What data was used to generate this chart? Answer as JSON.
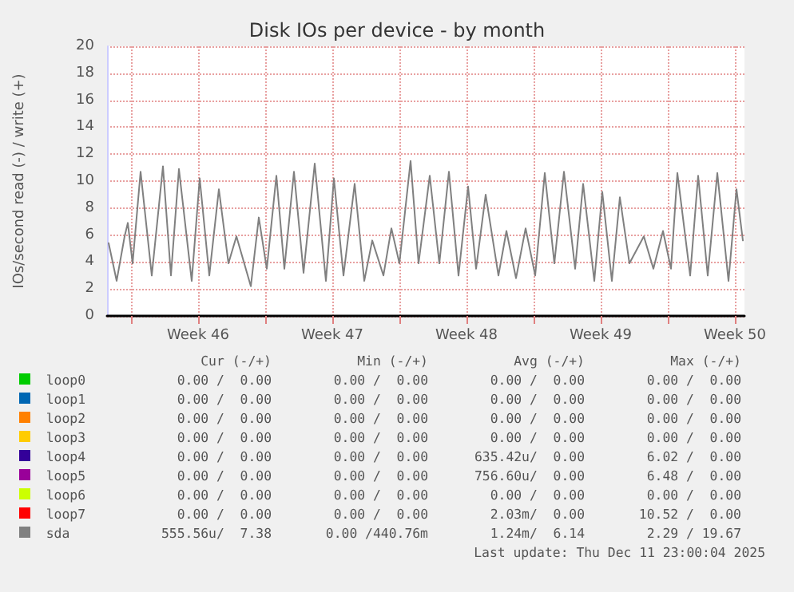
{
  "chart_data": {
    "type": "line",
    "title": "Disk IOs per device - by month",
    "ylabel": "IOs/second read (-) / write (+)",
    "xlim": [
      "2025-11-08T18:00",
      "2025-12-12T00:00"
    ],
    "xticks": [
      {
        "value": "2025-11-10T00:00",
        "label": null
      },
      {
        "value": "2025-11-13T12:00",
        "label": "Week 46"
      },
      {
        "value": "2025-11-17T00:00",
        "label": null
      },
      {
        "value": "2025-11-20T12:00",
        "label": "Week 47"
      },
      {
        "value": "2025-11-24T00:00",
        "label": null
      },
      {
        "value": "2025-11-27T12:00",
        "label": "Week 48"
      },
      {
        "value": "2025-12-01T00:00",
        "label": null
      },
      {
        "value": "2025-12-04T12:00",
        "label": "Week 49"
      },
      {
        "value": "2025-12-08T00:00",
        "label": null
      },
      {
        "value": "2025-12-11T12:00",
        "label": "Week 50"
      }
    ],
    "ylim": [
      0,
      20
    ],
    "yticks": [
      0,
      2,
      4,
      6,
      8,
      10,
      12,
      14,
      16,
      18,
      20
    ],
    "grid": true,
    "legend": "bottom",
    "marker": "none",
    "line_style": "solid",
    "series": [
      {
        "name": "loop0",
        "color": "#00cc00"
      },
      {
        "name": "loop1",
        "color": "#0066b3"
      },
      {
        "name": "loop2",
        "color": "#ff8000"
      },
      {
        "name": "loop3",
        "color": "#ffcc00"
      },
      {
        "name": "loop4",
        "color": "#330099"
      },
      {
        "name": "loop5",
        "color": "#990099"
      },
      {
        "name": "loop6",
        "color": "#ccff00"
      },
      {
        "name": "loop7",
        "color": "#ff0000"
      },
      {
        "name": "sda",
        "color": "#808080",
        "x": [
          "2025-11-08T20:00",
          "2025-11-09T06:00",
          "2025-11-09T16:00",
          "2025-11-09T20:00",
          "2025-11-10T02:00",
          "2025-11-10T12:00",
          "2025-11-11T02:00",
          "2025-11-11T16:00",
          "2025-11-12T02:00",
          "2025-11-12T12:00",
          "2025-11-13T04:00",
          "2025-11-13T14:00",
          "2025-11-14T02:00",
          "2025-11-14T14:00",
          "2025-11-15T02:00",
          "2025-11-15T12:00",
          "2025-11-16T06:00",
          "2025-11-16T16:00",
          "2025-11-17T02:00",
          "2025-11-17T14:00",
          "2025-11-18T00:00",
          "2025-11-18T12:00",
          "2025-11-19T00:00",
          "2025-11-19T14:00",
          "2025-11-20T04:00",
          "2025-11-20T14:00",
          "2025-11-21T02:00",
          "2025-11-21T16:00",
          "2025-11-22T04:00",
          "2025-11-22T14:00",
          "2025-11-23T04:00",
          "2025-11-23T14:00",
          "2025-11-24T00:00",
          "2025-11-24T14:00",
          "2025-11-25T00:00",
          "2025-11-25T14:00",
          "2025-11-26T02:00",
          "2025-11-26T14:00",
          "2025-11-27T02:00",
          "2025-11-27T14:00",
          "2025-11-28T00:00",
          "2025-11-28T12:00",
          "2025-11-29T04:00",
          "2025-11-29T14:00",
          "2025-11-30T02:00",
          "2025-11-30T14:00",
          "2025-12-01T02:00",
          "2025-12-01T14:00",
          "2025-12-02T02:00",
          "2025-12-02T14:00",
          "2025-12-03T04:00",
          "2025-12-03T14:00",
          "2025-12-04T04:00",
          "2025-12-04T14:00",
          "2025-12-05T02:00",
          "2025-12-05T12:00",
          "2025-12-06T00:00",
          "2025-12-06T18:00",
          "2025-12-07T06:00",
          "2025-12-07T18:00",
          "2025-12-08T04:00",
          "2025-12-08T12:00",
          "2025-12-09T04:00",
          "2025-12-09T14:00",
          "2025-12-10T02:00",
          "2025-12-10T14:00",
          "2025-12-11T04:00",
          "2025-12-11T14:00",
          "2025-12-11T22:00"
        ],
        "values": [
          5.4,
          2.6,
          5.9,
          6.9,
          3.9,
          10.7,
          3.0,
          11.1,
          3.0,
          10.9,
          2.6,
          10.2,
          3.0,
          9.4,
          3.9,
          5.9,
          2.2,
          7.3,
          3.5,
          10.4,
          3.5,
          10.7,
          3.2,
          11.3,
          2.6,
          10.2,
          3.0,
          9.8,
          2.6,
          5.6,
          3.0,
          6.5,
          3.9,
          11.5,
          3.9,
          10.4,
          3.9,
          10.7,
          3.0,
          9.6,
          3.5,
          9.0,
          3.0,
          6.3,
          2.8,
          6.5,
          3.0,
          10.6,
          3.9,
          10.7,
          3.5,
          9.8,
          2.6,
          9.2,
          2.6,
          8.8,
          3.9,
          5.9,
          3.5,
          6.3,
          3.5,
          10.6,
          3.0,
          10.4,
          3.0,
          10.6,
          2.6,
          9.4,
          5.6
        ]
      }
    ],
    "annotations": [
      "Cur (-/+)",
      "Min (-/+)",
      "Avg (-/+)",
      "Max (-/+)",
      "0.00 /  0.00",
      "0.00 /  0.00",
      "0.00 /  0.00",
      "0.00 /  0.00",
      "0.00 /  0.00",
      "0.00 /  0.00",
      "0.00 /  0.00",
      "0.00 /  0.00",
      "0.00 /  0.00",
      "0.00 /  0.00",
      "0.00 /  0.00",
      "0.00 /  0.00",
      "0.00 /  0.00",
      "0.00 /  0.00",
      "0.00 /  0.00",
      "0.00 /  0.00",
      "0.00 /  0.00",
      "0.00 /  0.00",
      "635.42u/  0.00",
      "6.02 /  0.00",
      "0.00 /  0.00",
      "0.00 /  0.00",
      "756.60u/  0.00",
      "6.48 /  0.00",
      "0.00 /  0.00",
      "0.00 /  0.00",
      "0.00 /  0.00",
      "0.00 /  0.00",
      "0.00 /  0.00",
      "0.00 /  0.00",
      "2.03m/  0.00",
      "10.52 /  0.00",
      "555.56u/  7.38",
      "0.00 /440.76m",
      "1.24m/  6.14",
      "2.29 / 19.67",
      "Last update: Thu Dec 11 23:00:04 2025"
    ]
  }
}
